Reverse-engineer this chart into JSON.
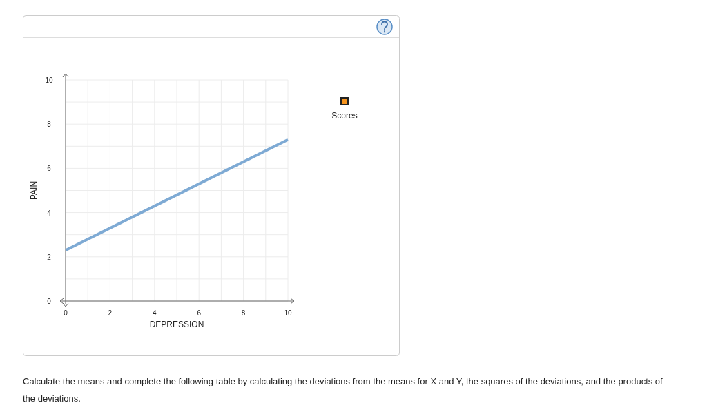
{
  "chart_data": {
    "type": "line",
    "xlabel": "DEPRESSION",
    "ylabel": "PAIN",
    "xlim": [
      0,
      10
    ],
    "ylim": [
      0,
      10
    ],
    "xticks": [
      0,
      {
        "value": 1,
        "label": null
      },
      2,
      {
        "value": 3,
        "label": null
      },
      4,
      {
        "value": 5,
        "label": null
      },
      6,
      {
        "value": 7,
        "label": null
      },
      8,
      {
        "value": 9,
        "label": null
      },
      10
    ],
    "yticks": [
      0,
      {
        "value": 1,
        "label": null
      },
      2,
      {
        "value": 3,
        "label": null
      },
      4,
      {
        "value": 5,
        "label": null
      },
      6,
      {
        "value": 7,
        "label": null
      },
      8,
      {
        "value": 9,
        "label": null
      },
      10
    ],
    "grid": true,
    "legend": "right",
    "series": [
      {
        "color": "#7eaad4",
        "x": [
          0,
          10
        ],
        "values": [
          2.3,
          7.3
        ]
      },
      {
        "type": "scatter",
        "name": "Scores",
        "color": "#f7941d",
        "marker": "square"
      }
    ],
    "annotations": [
      "Calculate the means and complete the following table by calculating the deviations from the means for X and Y, the squares of the deviations, and the products of the deviations."
    ]
  }
}
